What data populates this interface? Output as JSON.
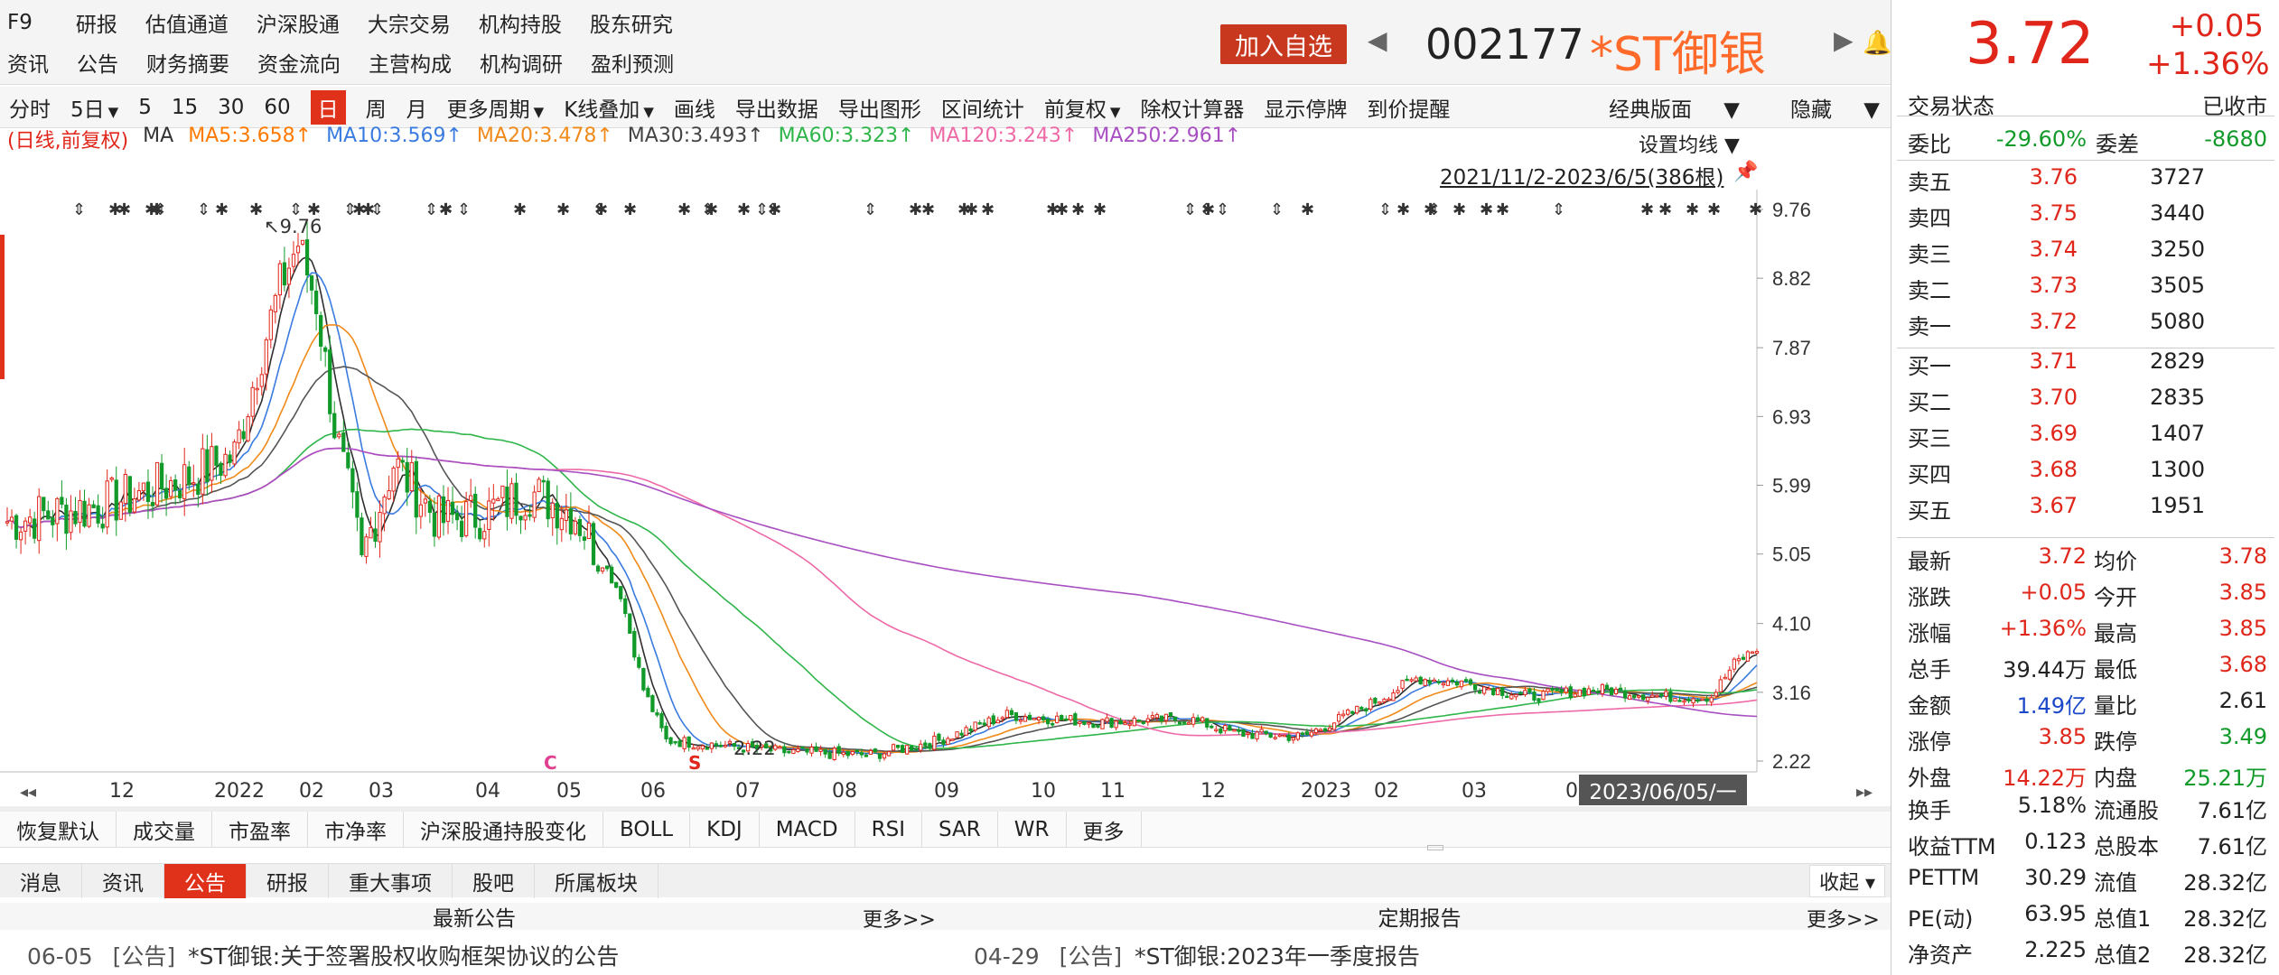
{
  "nav": {
    "f9": "F9",
    "row1": [
      "研报",
      "估值通道",
      "沪深股通",
      "大宗交易",
      "机构持股",
      "股东研究"
    ],
    "row2": [
      "资讯",
      "公告",
      "财务摘要",
      "资金流向",
      "主营构成",
      "机构调研",
      "盈利预测"
    ]
  },
  "header": {
    "add_fav": "加入自选",
    "code": "002177",
    "name": "*ST御银",
    "price": "3.72",
    "change": "+0.05",
    "change_pct": "+1.36%"
  },
  "toolbar": {
    "items": [
      "分时",
      "5日",
      "5",
      "15",
      "30",
      "60",
      "日",
      "周",
      "月",
      "更多周期",
      "K线叠加",
      "画线",
      "导出数据",
      "导出图形",
      "区间统计",
      "前复权",
      "除权计算器",
      "显示停牌",
      "到价提醒"
    ],
    "active": "日",
    "right": [
      "经典版面",
      "隐藏"
    ]
  },
  "ma": {
    "prefix": "(日线,前复权)",
    "ma": "MA",
    "ma5": "MA5:3.658↑",
    "ma10": "MA10:3.569↑",
    "ma20": "MA20:3.478↑",
    "ma30": "MA30:3.493↑",
    "ma60": "MA60:3.323↑",
    "ma120": "MA120:3.243↑",
    "ma250": "MA250:2.961↑",
    "set": "设置均线 ▼",
    "range": "2021/11/2-2023/6/5(386根)"
  },
  "colors": {
    "ma5": "#2f2f2f",
    "ma10": "#3a7be0",
    "ma20": "#f08a1a",
    "ma30": "#555555",
    "ma60": "#2fb54a",
    "ma120": "#ee6aa7",
    "ma250": "#a84fc2",
    "up": "#e0261a",
    "down": "#119a2a"
  },
  "chart_data": {
    "type": "candlestick",
    "yticks": [
      "9.76",
      "8.82",
      "7.87",
      "6.93",
      "5.99",
      "5.05",
      "4.10",
      "3.16",
      "2.22"
    ],
    "xticks": [
      "12",
      "2022",
      "02",
      "03",
      "04",
      "05",
      "06",
      "07",
      "08",
      "09",
      "10",
      "11",
      "12",
      "2023",
      "02",
      "03",
      "0"
    ],
    "annotations": {
      "high": "↖9.76",
      "low": "2.22",
      "c_mark": "C",
      "s_mark": "S"
    },
    "date_flag": "2023/06/05/一",
    "close_path": [
      [
        0,
        5.5
      ],
      [
        20,
        5.7
      ],
      [
        40,
        6.1
      ],
      [
        50,
        6.4
      ],
      [
        55,
        7.6
      ],
      [
        60,
        8.7
      ],
      [
        64,
        9.3
      ],
      [
        68,
        8.5
      ],
      [
        72,
        6.8
      ],
      [
        78,
        5.0
      ],
      [
        85,
        6.3
      ],
      [
        95,
        5.5
      ],
      [
        105,
        5.6
      ],
      [
        115,
        5.9
      ],
      [
        125,
        5.6
      ],
      [
        135,
        4.5
      ],
      [
        140,
        3.2
      ],
      [
        145,
        2.5
      ],
      [
        155,
        2.45
      ],
      [
        170,
        2.35
      ],
      [
        190,
        2.3
      ],
      [
        205,
        2.5
      ],
      [
        220,
        2.85
      ],
      [
        240,
        2.75
      ],
      [
        260,
        2.8
      ],
      [
        270,
        2.6
      ],
      [
        285,
        2.55
      ],
      [
        300,
        3.0
      ],
      [
        310,
        3.35
      ],
      [
        320,
        3.3
      ],
      [
        335,
        3.1
      ],
      [
        350,
        3.2
      ],
      [
        365,
        3.1
      ],
      [
        375,
        3.1
      ],
      [
        380,
        3.55
      ],
      [
        386,
        3.8
      ]
    ]
  },
  "indicators": [
    "恢复默认",
    "成交量",
    "市盈率",
    "市净率",
    "沪深股通持股变化",
    "BOLL",
    "KDJ",
    "MACD",
    "RSI",
    "SAR",
    "WR",
    "更多"
  ],
  "info": {
    "tabs": [
      "消息",
      "资讯",
      "公告",
      "研报",
      "重大事项",
      "股吧",
      "所属板块"
    ],
    "active": "公告",
    "collapse": "收起 ▾",
    "latest": "最新公告",
    "periodic": "定期报告",
    "more": "更多>>",
    "news1": {
      "date": "06-05",
      "tag": "[公告]",
      "title": "*ST御银:关于签署股权收购框架协议的公告"
    },
    "news2": {
      "date": "04-29",
      "tag": "[公告]",
      "title": "*ST御银:2023年一季度报告"
    }
  },
  "panel": {
    "status_label": "交易状态",
    "status": "已收市",
    "weibi_label": "委比",
    "weibi": "-29.60%",
    "weicha_label": "委差",
    "weicha": "-8680",
    "asks": [
      {
        "l": "卖五",
        "p": "3.76",
        "v": "3727"
      },
      {
        "l": "卖四",
        "p": "3.75",
        "v": "3440"
      },
      {
        "l": "卖三",
        "p": "3.74",
        "v": "3250"
      },
      {
        "l": "卖二",
        "p": "3.73",
        "v": "3505"
      },
      {
        "l": "卖一",
        "p": "3.72",
        "v": "5080"
      }
    ],
    "bids": [
      {
        "l": "买一",
        "p": "3.71",
        "v": "2829"
      },
      {
        "l": "买二",
        "p": "3.70",
        "v": "2835"
      },
      {
        "l": "买三",
        "p": "3.69",
        "v": "1407"
      },
      {
        "l": "买四",
        "p": "3.68",
        "v": "1300"
      },
      {
        "l": "买五",
        "p": "3.67",
        "v": "1951"
      }
    ],
    "stats": [
      [
        "最新",
        "3.72",
        "red",
        "均价",
        "3.78",
        "red"
      ],
      [
        "涨跌",
        "+0.05",
        "red",
        "今开",
        "3.85",
        "red"
      ],
      [
        "涨幅",
        "+1.36%",
        "red",
        "最高",
        "3.85",
        "red"
      ],
      [
        "总手",
        "39.44万",
        "",
        "最低",
        "3.68",
        "red"
      ],
      [
        "金额",
        "1.49亿",
        "blue",
        "量比",
        "2.61",
        ""
      ],
      [
        "涨停",
        "3.85",
        "red",
        "跌停",
        "3.49",
        "green"
      ],
      [
        "外盘",
        "14.22万",
        "red",
        "内盘",
        "25.21万",
        "green"
      ]
    ],
    "stats2": [
      [
        "换手",
        "5.18%",
        "",
        "流通股",
        "7.61亿",
        ""
      ],
      [
        "收益TTM",
        "0.123",
        "",
        "总股本",
        "7.61亿",
        ""
      ],
      [
        "PETTM",
        "30.29",
        "",
        "流值",
        "28.32亿",
        ""
      ],
      [
        "PE(动)",
        "63.95",
        "",
        "总值1",
        "28.32亿",
        ""
      ],
      [
        "净资产",
        "2.225",
        "",
        "总值2",
        "28.32亿",
        ""
      ]
    ]
  }
}
